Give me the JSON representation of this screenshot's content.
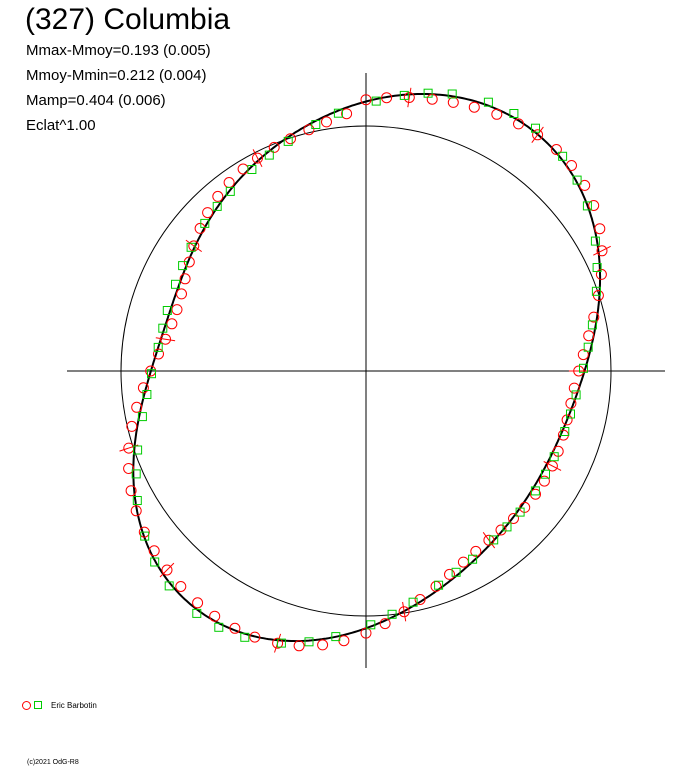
{
  "header": {
    "title": "(327) Columbia",
    "stats": [
      "Mmax-Mmoy=0.193 (0.005)",
      "Mmoy-Mmin=0.212 (0.004)",
      "Mamp=0.404 (0.006)",
      "Eclat^1.00"
    ]
  },
  "legend": {
    "observer": "Eric Barbotin"
  },
  "footer": {
    "copyright": "(c)2021 OdG-R8"
  },
  "colors": {
    "series_circle": "#ff0000",
    "series_square": "#00cc00",
    "curve": "#000000",
    "reference_circle": "#000000"
  },
  "chart_data": {
    "type": "polar-lightcurve",
    "axes": {
      "horizontal_axis": true,
      "vertical_axis": true,
      "reference_circle_radius": 1.0
    },
    "harmonics": [
      {
        "n": 0,
        "a": 0.0,
        "b": 0.0
      },
      {
        "n": 1,
        "a": 0.02,
        "b": -0.005
      },
      {
        "n": 2,
        "a": 0.095,
        "b": 0.15
      },
      {
        "n": 3,
        "a": 0.005,
        "b": -0.012
      },
      {
        "n": 4,
        "a": -0.02,
        "b": 0.008
      }
    ],
    "base_radius": 1.0,
    "series": [
      {
        "name": "Eric Barbotin",
        "marker": "circle",
        "phase_offsets": [
          0.0,
          0.012,
          0.025,
          0.038,
          0.05,
          0.062,
          0.075,
          0.088,
          0.1,
          0.113,
          0.125,
          0.138,
          0.15,
          0.163,
          0.175,
          0.188,
          0.2,
          0.213,
          0.225,
          0.238,
          0.25,
          0.263,
          0.275,
          0.288,
          0.3,
          0.313,
          0.325,
          0.338,
          0.35,
          0.363,
          0.375,
          0.388,
          0.4,
          0.413,
          0.425,
          0.438,
          0.45,
          0.463,
          0.475,
          0.488,
          0.5,
          0.513,
          0.525,
          0.538,
          0.55,
          0.563,
          0.575,
          0.588,
          0.6,
          0.613,
          0.625,
          0.638,
          0.65,
          0.663,
          0.675,
          0.688,
          0.7,
          0.713,
          0.725,
          0.738,
          0.75,
          0.763,
          0.775,
          0.788,
          0.8,
          0.813,
          0.825,
          0.838,
          0.85,
          0.863,
          0.875,
          0.888,
          0.9,
          0.913,
          0.925,
          0.938,
          0.95,
          0.963,
          0.975,
          0.988
        ],
        "residual_scale": 0.025
      },
      {
        "name": "Eric Barbotin",
        "marker": "square",
        "phase_offsets": [
          0.006,
          0.022,
          0.035,
          0.048,
          0.068,
          0.083,
          0.097,
          0.118,
          0.133,
          0.148,
          0.168,
          0.183,
          0.197,
          0.218,
          0.233,
          0.248,
          0.268,
          0.283,
          0.297,
          0.318,
          0.333,
          0.348,
          0.368,
          0.383,
          0.397,
          0.418,
          0.433,
          0.448,
          0.468,
          0.483,
          0.497,
          0.518,
          0.533,
          0.548,
          0.568,
          0.583,
          0.597,
          0.618,
          0.633,
          0.648,
          0.668,
          0.683,
          0.697,
          0.718,
          0.733,
          0.748,
          0.768,
          0.783,
          0.797,
          0.818,
          0.833,
          0.848,
          0.868,
          0.883,
          0.897,
          0.918,
          0.933,
          0.948,
          0.968,
          0.983
        ],
        "residual_scale": 0.015
      }
    ]
  }
}
